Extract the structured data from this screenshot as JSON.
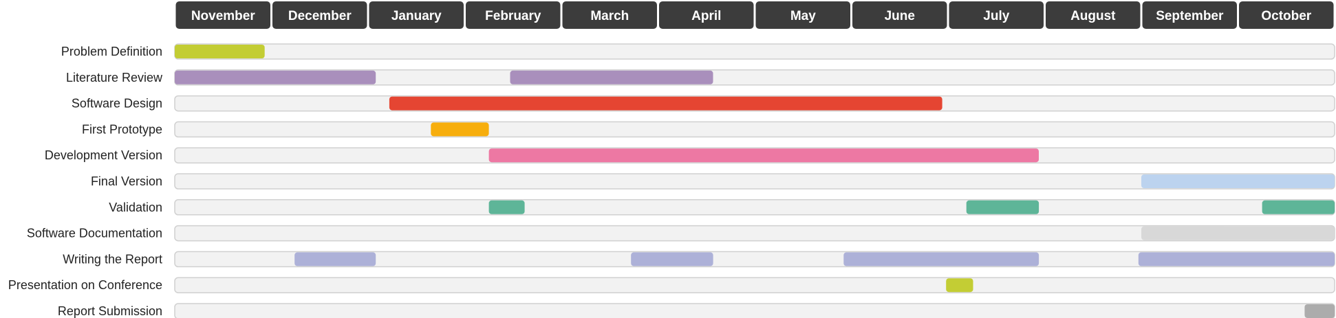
{
  "chart_data": {
    "type": "gantt",
    "months": [
      "November",
      "December",
      "January",
      "February",
      "March",
      "April",
      "May",
      "June",
      "July",
      "August",
      "September",
      "October"
    ],
    "tasks": [
      {
        "name": "Problem Definition",
        "bars": [
          {
            "start": 0.0,
            "end": 0.93,
            "color": "#c3cd34"
          }
        ]
      },
      {
        "name": "Literature Review",
        "bars": [
          {
            "start": 0.0,
            "end": 2.08,
            "color": "#a98fbc"
          },
          {
            "start": 3.47,
            "end": 5.57,
            "color": "#a98fbc"
          }
        ]
      },
      {
        "name": "Software Design",
        "bars": [
          {
            "start": 2.22,
            "end": 7.94,
            "color": "#e54532"
          }
        ]
      },
      {
        "name": "First Prototype",
        "bars": [
          {
            "start": 2.65,
            "end": 3.25,
            "color": "#f7ae0d"
          }
        ]
      },
      {
        "name": "Development Version",
        "bars": [
          {
            "start": 3.25,
            "end": 8.94,
            "color": "#ed78a3"
          }
        ]
      },
      {
        "name": "Final Version",
        "bars": [
          {
            "start": 10.0,
            "end": 12.0,
            "color": "#bcd3ef"
          }
        ]
      },
      {
        "name": "Validation",
        "bars": [
          {
            "start": 3.25,
            "end": 3.62,
            "color": "#5eb598"
          },
          {
            "start": 8.19,
            "end": 8.94,
            "color": "#5eb598"
          },
          {
            "start": 11.25,
            "end": 12.0,
            "color": "#5eb598"
          }
        ]
      },
      {
        "name": "Software Documentation",
        "bars": [
          {
            "start": 10.0,
            "end": 12.0,
            "color": "#d8d8d8"
          }
        ]
      },
      {
        "name": "Writing the Report",
        "bars": [
          {
            "start": 1.24,
            "end": 2.08,
            "color": "#adb1d8"
          },
          {
            "start": 4.72,
            "end": 5.57,
            "color": "#adb1d8"
          },
          {
            "start": 6.92,
            "end": 8.94,
            "color": "#adb1d8"
          },
          {
            "start": 9.97,
            "end": 12.0,
            "color": "#adb1d8"
          }
        ]
      },
      {
        "name": "Presentation on Conference",
        "bars": [
          {
            "start": 7.98,
            "end": 8.26,
            "color": "#c3cd34"
          }
        ]
      },
      {
        "name": "Report Submission",
        "bars": [
          {
            "start": 11.69,
            "end": 12.0,
            "color": "#acacac"
          }
        ]
      }
    ],
    "colors": {
      "month_header": "#3c3c3c",
      "track_fill": "#f2f2f2",
      "track_border": "#d0d0d0"
    }
  }
}
